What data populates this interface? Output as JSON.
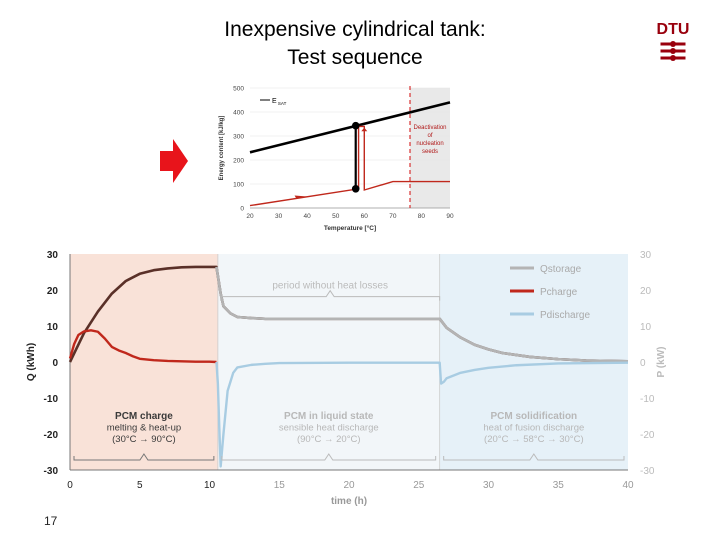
{
  "slide": {
    "title_line1": "Inexpensive cylindrical tank:",
    "title_line2": "Test sequence",
    "page_number": "17",
    "logo_text": "DTU",
    "arrow_icon": "right-arrow-icon"
  },
  "colors": {
    "title": "#000000",
    "arrow": "#e8141b",
    "logo": "#99000d",
    "qstorage": "#5a3028",
    "pcharge": "#c0281c",
    "pdischarge": "#a8cce2",
    "charge_bg": "#f9e2d8",
    "discharge_bg": "#e6f1f8"
  },
  "chart_data": [
    {
      "type": "line",
      "title": "",
      "xlabel": "Temperature [°C]",
      "ylabel": "Energy content [kJ/kg]",
      "xlim": [
        20,
        90
      ],
      "ylim": [
        0,
        500
      ],
      "xticks": [
        20,
        30,
        40,
        50,
        60,
        70,
        80,
        90
      ],
      "yticks": [
        0,
        100,
        200,
        300,
        400,
        500
      ],
      "legend": {
        "position": "top-left",
        "entries": [
          {
            "name": "E",
            "subscript": "SAT"
          }
        ]
      },
      "series": [
        {
          "name": "E",
          "kind": "saturation-line",
          "x": [
            20,
            90
          ],
          "values": [
            232,
            440
          ]
        },
        {
          "name": "",
          "kind": "test-path",
          "x": [
            20,
            58,
            58,
            60,
            60,
            70,
            90
          ],
          "values": [
            10,
            80,
            340,
            340,
            75,
            110,
            110
          ]
        }
      ],
      "markers": [
        {
          "x": 57,
          "y": 343
        },
        {
          "x": 57,
          "y": 80
        }
      ],
      "vline": {
        "x": 76
      },
      "shaded_region": {
        "x_from": 76,
        "x_to": 90
      },
      "annotation": [
        "Deactivation",
        "of",
        "nucleation",
        "seeds"
      ],
      "tick_values_x": [
        "20",
        "30",
        "40",
        "50",
        "60",
        "70",
        "80",
        "90"
      ],
      "tick_values_y": [
        "0",
        "100",
        "200",
        "300",
        "400",
        "500"
      ]
    },
    {
      "type": "line",
      "title": "",
      "xlabel": "time (h)",
      "ylabel": "Q (kWh)",
      "ylabel_right": "P (kW)",
      "xlim": [
        0,
        40
      ],
      "ylim": [
        -30,
        30
      ],
      "xticks": [
        "0",
        "5",
        "10",
        "15",
        "20",
        "25",
        "30",
        "35",
        "40"
      ],
      "yticks": [
        "30",
        "20",
        "10",
        "0",
        "-10",
        "-20",
        "-30"
      ],
      "legend": {
        "position": "top-right",
        "entries": [
          "Qstorage",
          "Pcharge",
          "Pdischarge"
        ]
      },
      "series": [
        {
          "name": "Qstorage",
          "x": [
            0,
            0.5,
            1,
            2,
            3,
            4,
            5,
            6,
            7,
            8,
            9,
            10,
            10.5,
            10.8,
            11,
            11.5,
            12,
            13,
            14,
            16,
            20,
            24,
            26.5,
            27,
            28,
            29,
            30,
            31,
            33,
            35,
            37,
            40
          ],
          "values": [
            0,
            4,
            8,
            14,
            19,
            22.5,
            24.5,
            25.5,
            26,
            26.3,
            26.4,
            26.4,
            26.4,
            19,
            15.5,
            13.5,
            12.5,
            12.2,
            12,
            12,
            12,
            12,
            12,
            9.5,
            6.8,
            4.8,
            3.5,
            2.5,
            1.4,
            0.8,
            0.4,
            0.2
          ]
        },
        {
          "name": "Pcharge",
          "x": [
            0,
            0.3,
            0.6,
            1,
            1.5,
            2,
            2.5,
            3,
            3.5,
            4,
            4.5,
            5,
            6,
            7,
            8,
            9,
            10,
            10.5
          ],
          "values": [
            1,
            5,
            7.5,
            8.5,
            8.8,
            8.4,
            6.5,
            4.2,
            3.2,
            2.5,
            1.6,
            0.9,
            0.5,
            0.3,
            0.2,
            0.1,
            0.1,
            0
          ]
        },
        {
          "name": "Pdischarge",
          "x": [
            10.5,
            10.6,
            10.7,
            10.8,
            11,
            11.3,
            11.7,
            12,
            13,
            14,
            15,
            20,
            26.5,
            26.6,
            26.8,
            27,
            28,
            29,
            30,
            32,
            35,
            40
          ],
          "values": [
            0,
            -6,
            -18,
            -29,
            -20,
            -8,
            -3,
            -1.5,
            -0.8,
            -0.5,
            -0.3,
            -0.2,
            -0.2,
            -6,
            -5.5,
            -4.5,
            -3,
            -2.2,
            -1.6,
            -0.9,
            -0.4,
            -0.2
          ]
        }
      ],
      "phases": [
        {
          "x_from": 0,
          "x_to": 10.6,
          "color": "#f9e2d8",
          "label": [
            "PCM charge",
            "melting & heat-up",
            "(30°C → 90°C)"
          ]
        },
        {
          "x_from": 10.6,
          "x_to": 26.5,
          "color": "#f2f6f9",
          "label": [
            "PCM in liquid state",
            "sensible heat discharge",
            "(90°C → 20°C)"
          ]
        },
        {
          "x_from": 26.5,
          "x_to": 40,
          "color": "#e6f1f8",
          "label": [
            "PCM solidification",
            "heat of fusion discharge",
            "(20°C → 58°C → 30°C)"
          ]
        }
      ],
      "annotation_top": "period without heat losses",
      "brace_top": {
        "x_from": 10.8,
        "x_to": 26.5,
        "y": 21.2
      }
    }
  ]
}
